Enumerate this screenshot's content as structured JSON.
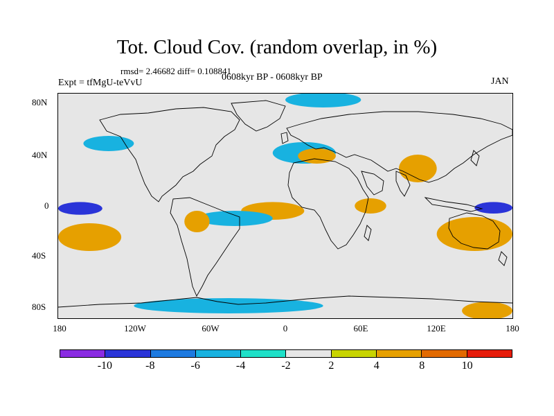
{
  "title": "Tot. Cloud Cov. (random overlap, in %)",
  "stats": "rmsd= 2.46682 diff= 0.108841",
  "experiment": "Expt = tfMgU-teVvU",
  "period": "0608kyr BP - 0608kyr BP",
  "month": "JAN",
  "x_ticks": [
    "180",
    "120W",
    "60W",
    "0",
    "60E",
    "120E",
    "180"
  ],
  "y_ticks": [
    "80N",
    "40N",
    "0",
    "40S",
    "80S"
  ],
  "colorbar": {
    "labels": [
      "-10",
      "-8",
      "-6",
      "-4",
      "-2",
      "2",
      "4",
      "8",
      "10"
    ],
    "colors": [
      "#8a2be2",
      "#2a34d8",
      "#1d7ae0",
      "#18b2e0",
      "#1ee0c8",
      "#e6e6e6",
      "#c8d400",
      "#e6a000",
      "#e26a00",
      "#e61c0a"
    ]
  },
  "chart_data": {
    "type": "heatmap",
    "title": "Tot. Cloud Cov. (random overlap, in %)",
    "projection": "cylindrical-equidistant",
    "lon_range": [
      -180,
      180
    ],
    "lat_range": [
      -90,
      90
    ],
    "xlabel": "",
    "ylabel": "",
    "units": "%",
    "levels": [
      -10,
      -8,
      -6,
      -4,
      -2,
      2,
      4,
      8,
      10
    ],
    "anomaly_regions": [
      {
        "name": "west-pacific-equatorial-negative",
        "lon_range": [
          -180,
          -145
        ],
        "lat_range": [
          -6,
          2
        ],
        "value": -8
      },
      {
        "name": "east-pacific-equatorial-negative",
        "lon_range": [
          150,
          180
        ],
        "lat_range": [
          -5,
          2
        ],
        "value": -8
      },
      {
        "name": "tropical-atlantic-positive",
        "lon_range": [
          -35,
          15
        ],
        "lat_range": [
          -10,
          2
        ],
        "value": 7
      },
      {
        "name": "south-atlantic-negative-band",
        "lon_range": [
          -70,
          -10
        ],
        "lat_range": [
          -15,
          -5
        ],
        "value": -4
      },
      {
        "name": "south-pacific-positive",
        "lon_range": [
          -180,
          -130
        ],
        "lat_range": [
          -35,
          -15
        ],
        "value": 5
      },
      {
        "name": "australia-positive",
        "lon_range": [
          120,
          180
        ],
        "lat_range": [
          -35,
          -10
        ],
        "value": 5
      },
      {
        "name": "indian-ocean-positive",
        "lon_range": [
          55,
          80
        ],
        "lat_range": [
          -5,
          5
        ],
        "value": 5
      },
      {
        "name": "south-america-west-positive",
        "lon_range": [
          -80,
          -60
        ],
        "lat_range": [
          -20,
          -5
        ],
        "value": 6
      },
      {
        "name": "southern-ocean-negative",
        "lon_range": [
          -120,
          30
        ],
        "lat_range": [
          -85,
          -75
        ],
        "value": -4
      },
      {
        "name": "antarctica-east-positive",
        "lon_range": [
          140,
          180
        ],
        "lat_range": [
          -90,
          -78
        ],
        "value": 5
      },
      {
        "name": "arctic-negative",
        "lon_range": [
          0,
          60
        ],
        "lat_range": [
          80,
          90
        ],
        "value": -5
      },
      {
        "name": "central-asia-negative",
        "lon_range": [
          -10,
          40
        ],
        "lat_range": [
          35,
          50
        ],
        "value": -4
      },
      {
        "name": "north-pacific-negative",
        "lon_range": [
          -160,
          -120
        ],
        "lat_range": [
          45,
          55
        ],
        "value": -4
      },
      {
        "name": "east-asia-positive",
        "lon_range": [
          90,
          120
        ],
        "lat_range": [
          20,
          40
        ],
        "value": 5
      },
      {
        "name": "mediterranean-positive",
        "lon_range": [
          10,
          40
        ],
        "lat_range": [
          35,
          45
        ],
        "value": 5
      }
    ]
  }
}
